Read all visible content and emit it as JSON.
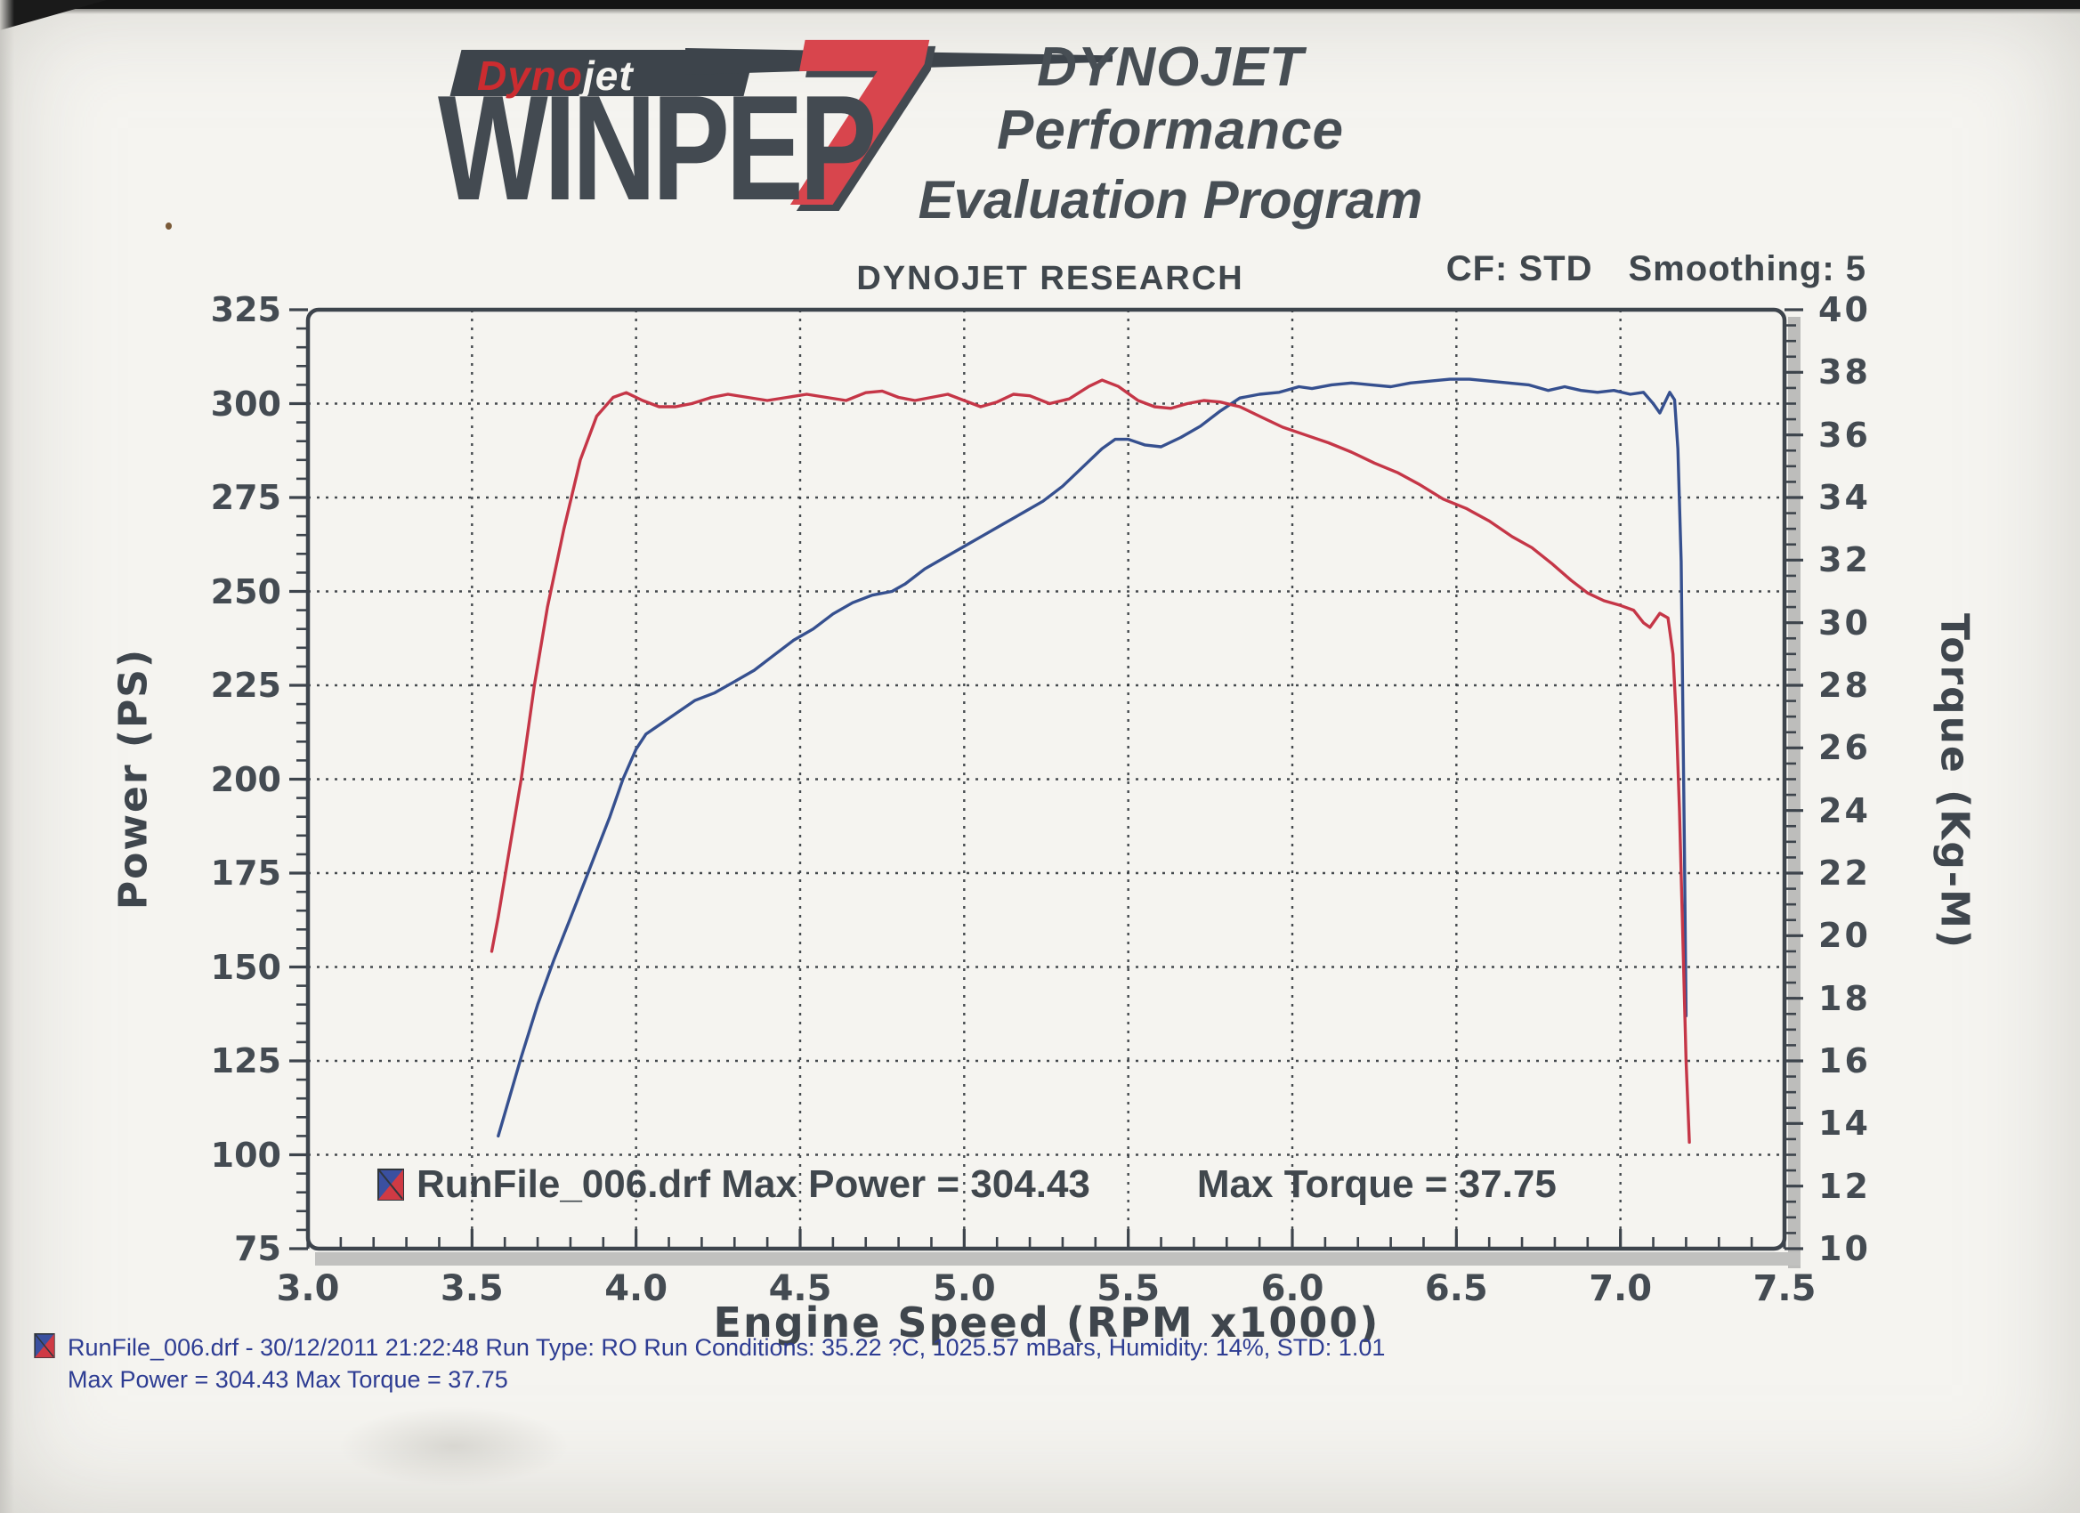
{
  "header": {
    "brand_red": "Dyno",
    "brand_white": "jet",
    "product": "WINPEP",
    "version": "7",
    "program_line1": "DYNOJET Performance",
    "program_line2": "Evaluation Program"
  },
  "chart_header": {
    "title": "DYNOJET RESEARCH",
    "cf": "CF: STD",
    "smoothing": "Smoothing: 5"
  },
  "legend": {
    "file_and_power": "RunFile_006.drf Max Power = 304.43",
    "torque": "Max Torque = 37.75"
  },
  "footer": {
    "line1": "RunFile_006.drf - 30/12/2011 21:22:48  Run Type: RO  Run Conditions: 35.22 ?C, 1025.57 mBars,  Humidity:  14%, STD: 1.01",
    "line2": "Max Power = 304.43  Max Torque = 37.75"
  },
  "chart_data": {
    "type": "line",
    "title": "DYNOJET RESEARCH",
    "correction_factor": "STD",
    "smoothing": 5,
    "grid": true,
    "x_axis": {
      "label": "Engine Speed (RPM x1000)",
      "min": 3.0,
      "max": 7.5,
      "major_ticks": [
        "3.0",
        "3.5",
        "4.0",
        "4.5",
        "5.0",
        "5.5",
        "6.0",
        "6.5",
        "7.0",
        "7.5"
      ],
      "minor_step": 0.1
    },
    "y_left": {
      "label": "Power (PS)",
      "min": 75,
      "max": 325,
      "major_ticks": [
        "325",
        "300",
        "275",
        "250",
        "225",
        "200",
        "175",
        "150",
        "125",
        "100",
        "75"
      ],
      "minor_step": 5
    },
    "y_right": {
      "label": "Torque (Kg-M)",
      "min": 10,
      "max": 40,
      "major_ticks": [
        "40",
        "38",
        "36",
        "34",
        "32",
        "30",
        "28",
        "26",
        "24",
        "22",
        "20",
        "18",
        "16",
        "14",
        "12",
        "10"
      ],
      "minor_step": 0.5
    },
    "annotations": {
      "max_power_ps": 304.43,
      "max_torque_kgm": 37.75,
      "run_file": "RunFile_006.drf"
    },
    "series": [
      {
        "name": "Power",
        "units": "PS",
        "axis": "left",
        "color": "#36508f",
        "points": [
          [
            3.58,
            105
          ],
          [
            3.61,
            114
          ],
          [
            3.65,
            126
          ],
          [
            3.7,
            140
          ],
          [
            3.75,
            152
          ],
          [
            3.8,
            163
          ],
          [
            3.84,
            172
          ],
          [
            3.88,
            181
          ],
          [
            3.92,
            190
          ],
          [
            3.96,
            200
          ],
          [
            4.0,
            208
          ],
          [
            4.03,
            212
          ],
          [
            4.08,
            215
          ],
          [
            4.13,
            218
          ],
          [
            4.18,
            221
          ],
          [
            4.24,
            223
          ],
          [
            4.3,
            226
          ],
          [
            4.36,
            229
          ],
          [
            4.42,
            233
          ],
          [
            4.48,
            237
          ],
          [
            4.54,
            240
          ],
          [
            4.6,
            244
          ],
          [
            4.66,
            247
          ],
          [
            4.72,
            249
          ],
          [
            4.78,
            250
          ],
          [
            4.82,
            252
          ],
          [
            4.88,
            256
          ],
          [
            4.94,
            259
          ],
          [
            5.0,
            262
          ],
          [
            5.06,
            265
          ],
          [
            5.12,
            268
          ],
          [
            5.18,
            271
          ],
          [
            5.24,
            274
          ],
          [
            5.3,
            278
          ],
          [
            5.36,
            283
          ],
          [
            5.42,
            288
          ],
          [
            5.46,
            290.5
          ],
          [
            5.5,
            290.5
          ],
          [
            5.55,
            289
          ],
          [
            5.6,
            288.5
          ],
          [
            5.66,
            291
          ],
          [
            5.72,
            294
          ],
          [
            5.78,
            298
          ],
          [
            5.84,
            301.5
          ],
          [
            5.9,
            302.5
          ],
          [
            5.96,
            303
          ],
          [
            6.02,
            304.5
          ],
          [
            6.06,
            304
          ],
          [
            6.12,
            305
          ],
          [
            6.18,
            305.5
          ],
          [
            6.24,
            305
          ],
          [
            6.3,
            304.5
          ],
          [
            6.36,
            305.5
          ],
          [
            6.42,
            306
          ],
          [
            6.48,
            306.5
          ],
          [
            6.54,
            306.5
          ],
          [
            6.6,
            306
          ],
          [
            6.66,
            305.5
          ],
          [
            6.72,
            305
          ],
          [
            6.78,
            303.5
          ],
          [
            6.83,
            304.5
          ],
          [
            6.88,
            303.5
          ],
          [
            6.93,
            303
          ],
          [
            6.98,
            303.5
          ],
          [
            7.03,
            302.5
          ],
          [
            7.07,
            303
          ],
          [
            7.1,
            300
          ],
          [
            7.12,
            297.5
          ],
          [
            7.15,
            303
          ],
          [
            7.165,
            301
          ],
          [
            7.175,
            288
          ],
          [
            7.185,
            258
          ],
          [
            7.19,
            220
          ],
          [
            7.195,
            180
          ],
          [
            7.2,
            137
          ]
        ]
      },
      {
        "name": "Torque",
        "units": "Kg-M",
        "axis": "right",
        "color": "#c53647",
        "points": [
          [
            3.56,
            19.5
          ],
          [
            3.58,
            20.6
          ],
          [
            3.61,
            22.5
          ],
          [
            3.65,
            25.0
          ],
          [
            3.69,
            28.0
          ],
          [
            3.73,
            30.5
          ],
          [
            3.78,
            33.0
          ],
          [
            3.83,
            35.2
          ],
          [
            3.88,
            36.6
          ],
          [
            3.93,
            37.2
          ],
          [
            3.97,
            37.35
          ],
          [
            4.02,
            37.1
          ],
          [
            4.07,
            36.9
          ],
          [
            4.12,
            36.9
          ],
          [
            4.17,
            37.0
          ],
          [
            4.23,
            37.2
          ],
          [
            4.28,
            37.3
          ],
          [
            4.34,
            37.2
          ],
          [
            4.4,
            37.1
          ],
          [
            4.46,
            37.2
          ],
          [
            4.52,
            37.3
          ],
          [
            4.58,
            37.2
          ],
          [
            4.64,
            37.1
          ],
          [
            4.7,
            37.35
          ],
          [
            4.75,
            37.4
          ],
          [
            4.8,
            37.2
          ],
          [
            4.85,
            37.1
          ],
          [
            4.9,
            37.2
          ],
          [
            4.95,
            37.3
          ],
          [
            5.0,
            37.1
          ],
          [
            5.05,
            36.9
          ],
          [
            5.1,
            37.05
          ],
          [
            5.15,
            37.3
          ],
          [
            5.2,
            37.25
          ],
          [
            5.26,
            37.0
          ],
          [
            5.32,
            37.15
          ],
          [
            5.38,
            37.55
          ],
          [
            5.42,
            37.75
          ],
          [
            5.47,
            37.55
          ],
          [
            5.53,
            37.1
          ],
          [
            5.58,
            36.9
          ],
          [
            5.63,
            36.85
          ],
          [
            5.68,
            37.0
          ],
          [
            5.73,
            37.1
          ],
          [
            5.78,
            37.05
          ],
          [
            5.84,
            36.9
          ],
          [
            5.9,
            36.6
          ],
          [
            5.97,
            36.25
          ],
          [
            6.04,
            36.0
          ],
          [
            6.11,
            35.75
          ],
          [
            6.18,
            35.45
          ],
          [
            6.25,
            35.1
          ],
          [
            6.32,
            34.8
          ],
          [
            6.39,
            34.4
          ],
          [
            6.46,
            33.95
          ],
          [
            6.53,
            33.65
          ],
          [
            6.6,
            33.25
          ],
          [
            6.67,
            32.75
          ],
          [
            6.73,
            32.4
          ],
          [
            6.79,
            31.9
          ],
          [
            6.85,
            31.35
          ],
          [
            6.9,
            30.95
          ],
          [
            6.95,
            30.7
          ],
          [
            7.0,
            30.55
          ],
          [
            7.04,
            30.4
          ],
          [
            7.07,
            30.0
          ],
          [
            7.09,
            29.85
          ],
          [
            7.12,
            30.3
          ],
          [
            7.145,
            30.15
          ],
          [
            7.16,
            29.0
          ],
          [
            7.17,
            27.0
          ],
          [
            7.18,
            24.0
          ],
          [
            7.19,
            20.0
          ],
          [
            7.2,
            16.0
          ],
          [
            7.21,
            13.4
          ]
        ]
      }
    ]
  }
}
